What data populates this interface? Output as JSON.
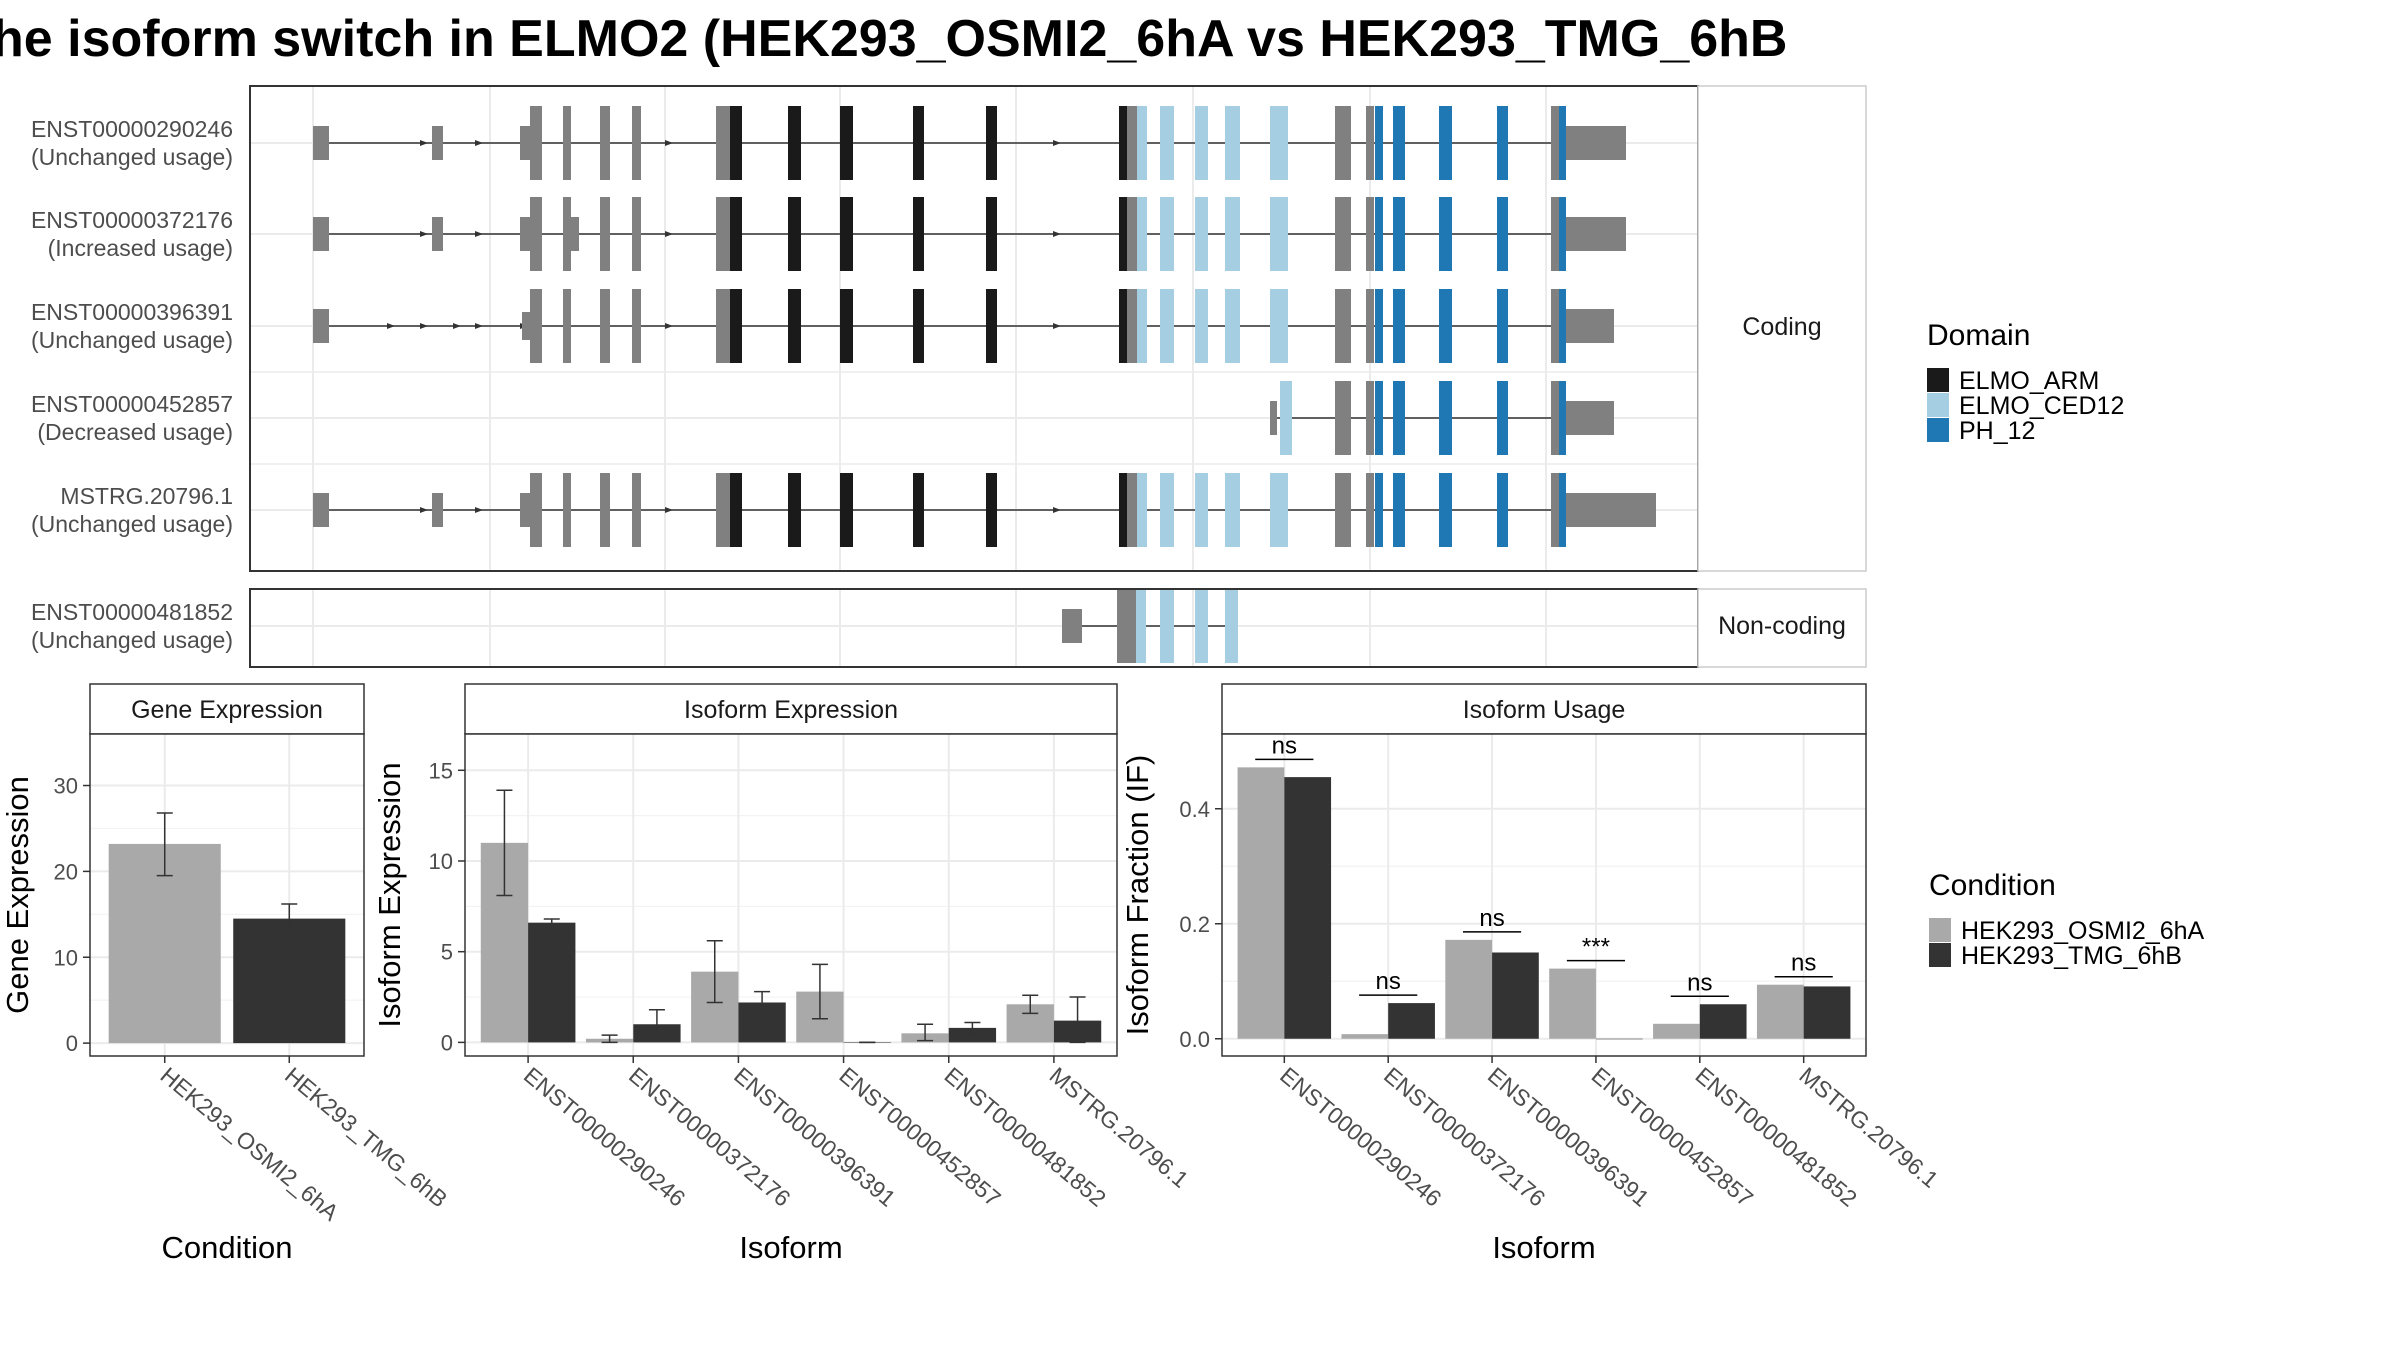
{
  "title": "he isoform switch in ELMO2 (HEK293_OSMI2_6hA vs HEK293_TMG_6hB",
  "structure": {
    "coding_strip_label": "Coding",
    "noncoding_strip_label": "Non-coding",
    "transcripts": [
      {
        "id": "ENST00000290246",
        "status": "(Unchanged usage)",
        "group": "coding",
        "variant": "full",
        "tail": 1.0
      },
      {
        "id": "ENST00000372176",
        "status": "(Increased usage)",
        "group": "coding",
        "variant": "full_wide",
        "tail": 1.0
      },
      {
        "id": "ENST00000396391",
        "status": "(Unchanged usage)",
        "group": "coding",
        "variant": "short5",
        "tail": 0.8
      },
      {
        "id": "ENST00000452857",
        "status": "(Decreased usage)",
        "group": "coding",
        "variant": "three_prime",
        "tail": 0.8
      },
      {
        "id": "MSTRG.20796.1",
        "status": "(Unchanged usage)",
        "group": "coding",
        "variant": "full",
        "tail": 1.5
      },
      {
        "id": "ENST00000481852",
        "status": "(Unchanged usage)",
        "group": "noncoding",
        "variant": "fragment",
        "tail": 0
      }
    ],
    "domain_legend": {
      "title": "Domain",
      "items": [
        {
          "name": "ELMO_ARM",
          "color": "#1a1a1a"
        },
        {
          "name": "ELMO_CED12",
          "color": "#a6cee3"
        },
        {
          "name": "PH_12",
          "color": "#1f78b4"
        }
      ]
    },
    "exon_color": "#808080",
    "intron_color": "#333333"
  },
  "condition_legend": {
    "title": "Condition",
    "items": [
      {
        "name": "HEK293_OSMI2_6hA",
        "color": "#a9a9a9"
      },
      {
        "name": "HEK293_TMG_6hB",
        "color": "#333333"
      }
    ]
  },
  "chart_data": [
    {
      "type": "bar",
      "panel_title": "Gene Expression",
      "categories": [
        "HEK293_OSMI2_6hA",
        "HEK293_TMG_6hB"
      ],
      "values": [
        23.2,
        14.5
      ],
      "errors": [
        [
          19.5,
          26.8
        ],
        [
          12.8,
          16.2
        ]
      ],
      "colors": [
        "#a9a9a9",
        "#333333"
      ],
      "xlabel": "Condition",
      "ylabel": "Gene Expression",
      "ylim": [
        -1.5,
        36
      ],
      "yticks": [
        0,
        10,
        20,
        30
      ]
    },
    {
      "type": "bar",
      "panel_title": "Isoform Expression",
      "categories": [
        "ENST00000290246",
        "ENST00000372176",
        "ENST00000396391",
        "ENST00000452857",
        "ENST00000481852",
        "MSTRG.20796.1"
      ],
      "series": [
        {
          "name": "HEK293_OSMI2_6hA",
          "color": "#a9a9a9",
          "values": [
            11.0,
            0.2,
            3.9,
            2.8,
            0.5,
            2.1
          ],
          "errors": [
            [
              8.1,
              13.9
            ],
            [
              0.0,
              0.4
            ],
            [
              2.2,
              5.6
            ],
            [
              1.3,
              4.3
            ],
            [
              0.1,
              1.0
            ],
            [
              1.6,
              2.6
            ]
          ]
        },
        {
          "name": "HEK293_TMG_6hB",
          "color": "#333333",
          "values": [
            6.6,
            1.0,
            2.2,
            0.0,
            0.8,
            1.2
          ],
          "errors": [
            [
              6.4,
              6.8
            ],
            [
              0.2,
              1.8
            ],
            [
              1.6,
              2.8
            ],
            [
              0.0,
              0.0
            ],
            [
              0.5,
              1.1
            ],
            [
              0.0,
              2.5
            ]
          ]
        }
      ],
      "xlabel": "Isoform",
      "ylabel": "Isoform Expression",
      "ylim": [
        -0.75,
        17
      ],
      "yticks": [
        0,
        5,
        10,
        15
      ]
    },
    {
      "type": "bar",
      "panel_title": "Isoform Usage",
      "categories": [
        "ENST00000290246",
        "ENST00000372176",
        "ENST00000396391",
        "ENST00000452857",
        "ENST00000481852",
        "MSTRG.20796.1"
      ],
      "series": [
        {
          "name": "HEK293_OSMI2_6hA",
          "color": "#a9a9a9",
          "values": [
            0.472,
            0.008,
            0.172,
            0.122,
            0.026,
            0.094
          ]
        },
        {
          "name": "HEK293_TMG_6hB",
          "color": "#333333",
          "values": [
            0.455,
            0.062,
            0.15,
            0.0,
            0.06,
            0.091
          ]
        }
      ],
      "significance": [
        "ns",
        "ns",
        "ns",
        "***",
        "ns",
        "ns"
      ],
      "xlabel": "Isoform",
      "ylabel": "Isoform Fraction (IF)",
      "ylim": [
        -0.03,
        0.53
      ],
      "yticks": [
        0.0,
        0.2,
        0.4
      ],
      "yticklabels": [
        "0.0",
        "0.2",
        "0.4"
      ]
    }
  ]
}
